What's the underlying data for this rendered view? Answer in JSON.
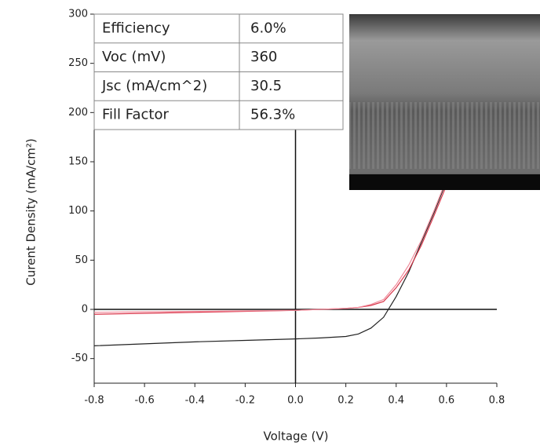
{
  "chart_data": {
    "type": "line",
    "xlabel": "Voltage (V)",
    "ylabel": "Curent Density (mA/cm²)",
    "x": [
      -0.8,
      -0.6,
      -0.4,
      -0.2,
      0,
      0.1,
      0.2,
      0.25,
      0.3,
      0.35,
      0.4,
      0.45,
      0.5,
      0.55,
      0.6
    ],
    "series": [
      {
        "color": "#222222",
        "values": [
          -37,
          -35,
          -33,
          -31.5,
          -30,
          -29,
          -27.5,
          -25,
          -19,
          -8,
          13,
          38,
          68,
          98,
          130
        ]
      },
      {
        "color": "#d9364a",
        "values": [
          -5,
          -4,
          -3,
          -2,
          -1,
          0,
          1,
          2,
          4,
          8,
          22,
          40,
          65,
          95,
          126
        ]
      },
      {
        "color": "#f08a9a",
        "values": [
          -3,
          -2.5,
          -2,
          -1.5,
          -1,
          0,
          1,
          2,
          5,
          10,
          25,
          45,
          70,
          100,
          132
        ]
      }
    ],
    "xlim": [
      -0.8,
      0.8
    ],
    "ylim": [
      -75,
      300
    ],
    "xticks": [
      -0.8,
      -0.6,
      -0.4,
      -0.2,
      {
        "value": 0,
        "label": "0.0"
      },
      0.2,
      0.4,
      0.6,
      0.8
    ],
    "yticks": [
      -50,
      0,
      50,
      100,
      150,
      200,
      250,
      300
    ],
    "table": {
      "rows": [
        [
          "Efficiency",
          "6.0%"
        ],
        [
          "Voc (mV)",
          "360"
        ],
        [
          "Jsc (mA/cm^2)",
          "30.5"
        ],
        [
          "Fill Factor",
          "56.3%"
        ]
      ]
    }
  }
}
